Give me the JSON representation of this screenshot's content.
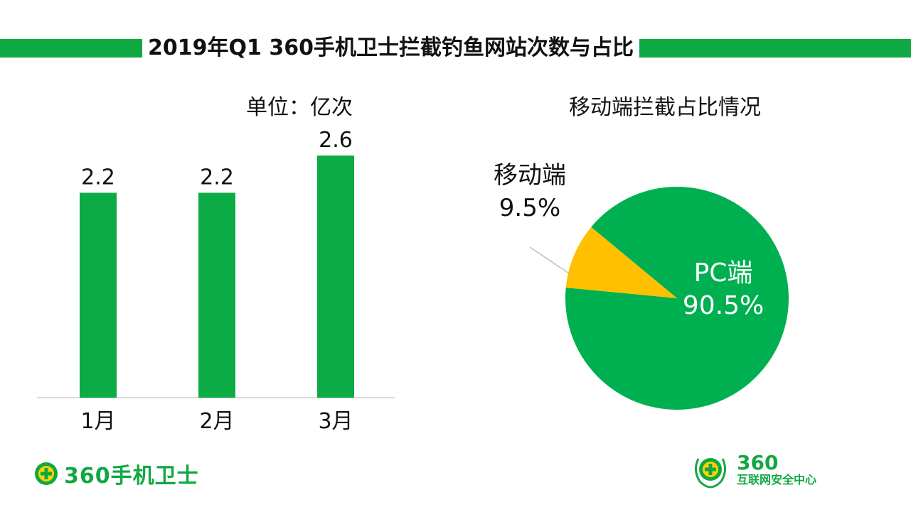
{
  "header": {
    "title": "2019年Q1 360手机卫士拦截钓鱼网站次数与占比"
  },
  "left_panel": {
    "subtitle": "单位：亿次"
  },
  "right_panel": {
    "subtitle": "移动端拦截占比情况"
  },
  "colors": {
    "green": "#10a843",
    "bar_green": "#0dab45",
    "pie_green": "#00b050",
    "pie_yellow": "#ffc000"
  },
  "chart_data": [
    {
      "type": "bar",
      "categories": [
        "1月",
        "2月",
        "3月"
      ],
      "values": [
        2.2,
        2.2,
        2.6
      ],
      "data_labels": [
        "2.2",
        "2.2",
        "2.6"
      ],
      "unit": "单位：亿次",
      "grid": false
    },
    {
      "type": "pie",
      "title": "移动端拦截占比情况",
      "slices": [
        {
          "name": "PC端",
          "value": 90.5,
          "label": "90.5%"
        },
        {
          "name": "移动端",
          "value": 9.5,
          "label": "9.5%"
        }
      ]
    }
  ],
  "footer": {
    "left_logo_text": "360手机卫士",
    "right_logo_main": "360",
    "right_logo_sub": "互联网安全中心"
  }
}
